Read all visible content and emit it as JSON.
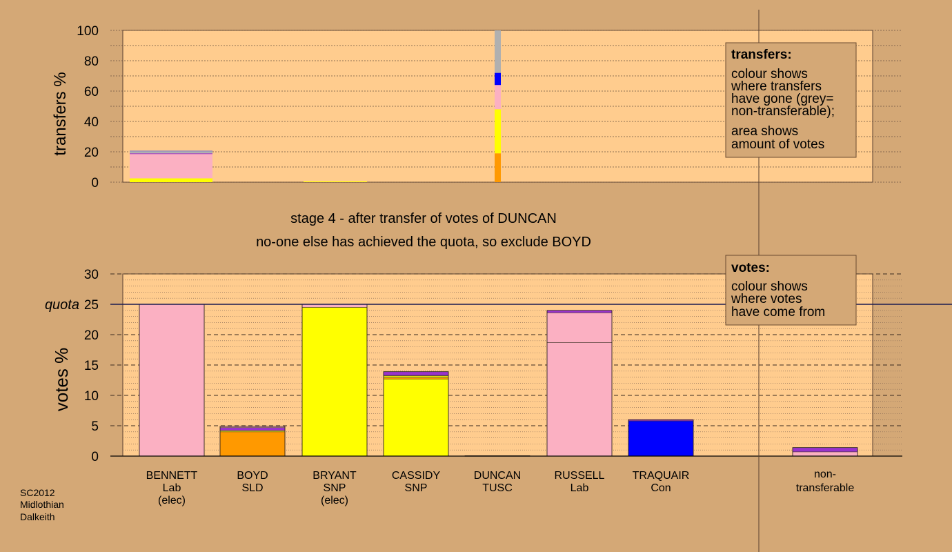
{
  "top_chart": {
    "ylabel": "transfers %",
    "ticks": [
      "0",
      "20",
      "40",
      "60",
      "80",
      "100"
    ]
  },
  "bottom_chart": {
    "ylabel": "votes %",
    "ticks": [
      "0",
      "5",
      "10",
      "15",
      "20",
      "25",
      "30"
    ],
    "quota_label": "quota"
  },
  "headings": {
    "stage_text": "stage 4 - after transfer of votes of DUNCAN",
    "action_text": "no-one else has achieved the quota, so exclude BOYD"
  },
  "legend_transfers": {
    "title": "transfers:",
    "lines1": [
      "colour shows",
      "where transfers",
      "have gone (grey=",
      "non-transferable);"
    ],
    "lines2": [
      "area shows",
      "amount of votes"
    ]
  },
  "legend_votes": {
    "title": "votes:",
    "lines": [
      "colour shows",
      "where votes",
      "have come from"
    ]
  },
  "footer": {
    "lines": [
      "SC2012",
      "Midlothian",
      "Dalkeith"
    ]
  },
  "colors": {
    "background": "#d4a876",
    "plot_bg": "#ffcc8e",
    "lab": "#fbb0c2",
    "snp": "#ffff00",
    "sld": "#ff9900",
    "con": "#0000ff",
    "tusc": "#9933cc",
    "nontransferable": "#b0b0b0"
  },
  "chart_data": [
    {
      "type": "bar",
      "title": "",
      "ylabel": "transfers %",
      "ylim": [
        0,
        100
      ],
      "stacked": true,
      "series": [
        {
          "x_label": "BENNETT",
          "segments": [
            {
              "party": "snp",
              "value": 2.5
            },
            {
              "party": "lab",
              "value": 16
            },
            {
              "party": "tusc",
              "value": 0.5
            },
            {
              "party": "nontransferable",
              "value": 1.5
            }
          ]
        },
        {
          "x_label": "BRYANT",
          "segments": [
            {
              "party": "snp",
              "value": 0.5
            }
          ]
        },
        {
          "x_label": "DUNCAN",
          "segments": [
            {
              "party": "sld",
              "value": 19
            },
            {
              "party": "snp",
              "value": 29
            },
            {
              "party": "lab",
              "value": 16
            },
            {
              "party": "con",
              "value": 8
            },
            {
              "party": "nontransferable",
              "value": 28
            }
          ]
        }
      ]
    },
    {
      "type": "bar",
      "title": "",
      "ylabel": "votes %",
      "ylim": [
        0,
        30
      ],
      "quota": 25,
      "stacked": true,
      "categories": [
        {
          "name": "BENNETT",
          "party": "Lab",
          "note": "(elec)"
        },
        {
          "name": "BOYD",
          "party": "SLD",
          "note": ""
        },
        {
          "name": "BRYANT",
          "party": "SNP",
          "note": "(elec)"
        },
        {
          "name": "CASSIDY",
          "party": "SNP",
          "note": ""
        },
        {
          "name": "DUNCAN",
          "party": "TUSC",
          "note": ""
        },
        {
          "name": "RUSSELL",
          "party": "Lab",
          "note": ""
        },
        {
          "name": "TRAQUAIR",
          "party": "Con",
          "note": ""
        }
      ],
      "nontransferable_label": [
        "non-",
        "transferable"
      ],
      "bars": [
        {
          "candidate": "BENNETT",
          "segments": [
            {
              "party": "lab",
              "value": 25
            }
          ]
        },
        {
          "candidate": "BOYD",
          "segments": [
            {
              "party": "sld",
              "value": 4
            },
            {
              "party": "snp",
              "value": 0.2
            },
            {
              "party": "tusc",
              "value": 0.5
            },
            {
              "party": "lab",
              "value": 0.2
            }
          ]
        },
        {
          "candidate": "BRYANT",
          "segments": [
            {
              "party": "snp",
              "value": 24.5
            },
            {
              "party": "lab",
              "value": 0.5
            }
          ]
        },
        {
          "candidate": "CASSIDY",
          "segments": [
            {
              "party": "snp",
              "value": 12.7
            },
            {
              "party": "sld",
              "value": 0.2
            },
            {
              "party": "snp",
              "value": 0.3
            },
            {
              "party": "lab",
              "value": 0.1
            },
            {
              "party": "tusc",
              "value": 0.6
            }
          ]
        },
        {
          "candidate": "DUNCAN",
          "segments": [
            {
              "party": "tusc",
              "value": 0.05
            }
          ]
        },
        {
          "candidate": "RUSSELL",
          "segments": [
            {
              "party": "lab",
              "value": 18.7
            },
            {
              "party": "lab",
              "value": 4.9
            },
            {
              "party": "tusc",
              "value": 0.4
            }
          ]
        },
        {
          "candidate": "TRAQUAIR",
          "segments": [
            {
              "party": "con",
              "value": 5.8
            },
            {
              "party": "tusc",
              "value": 0.2
            }
          ]
        },
        {
          "candidate": "non-transferable",
          "segments": [
            {
              "party": "lab",
              "value": 0.7
            },
            {
              "party": "tusc",
              "value": 0.7
            }
          ]
        }
      ]
    }
  ]
}
